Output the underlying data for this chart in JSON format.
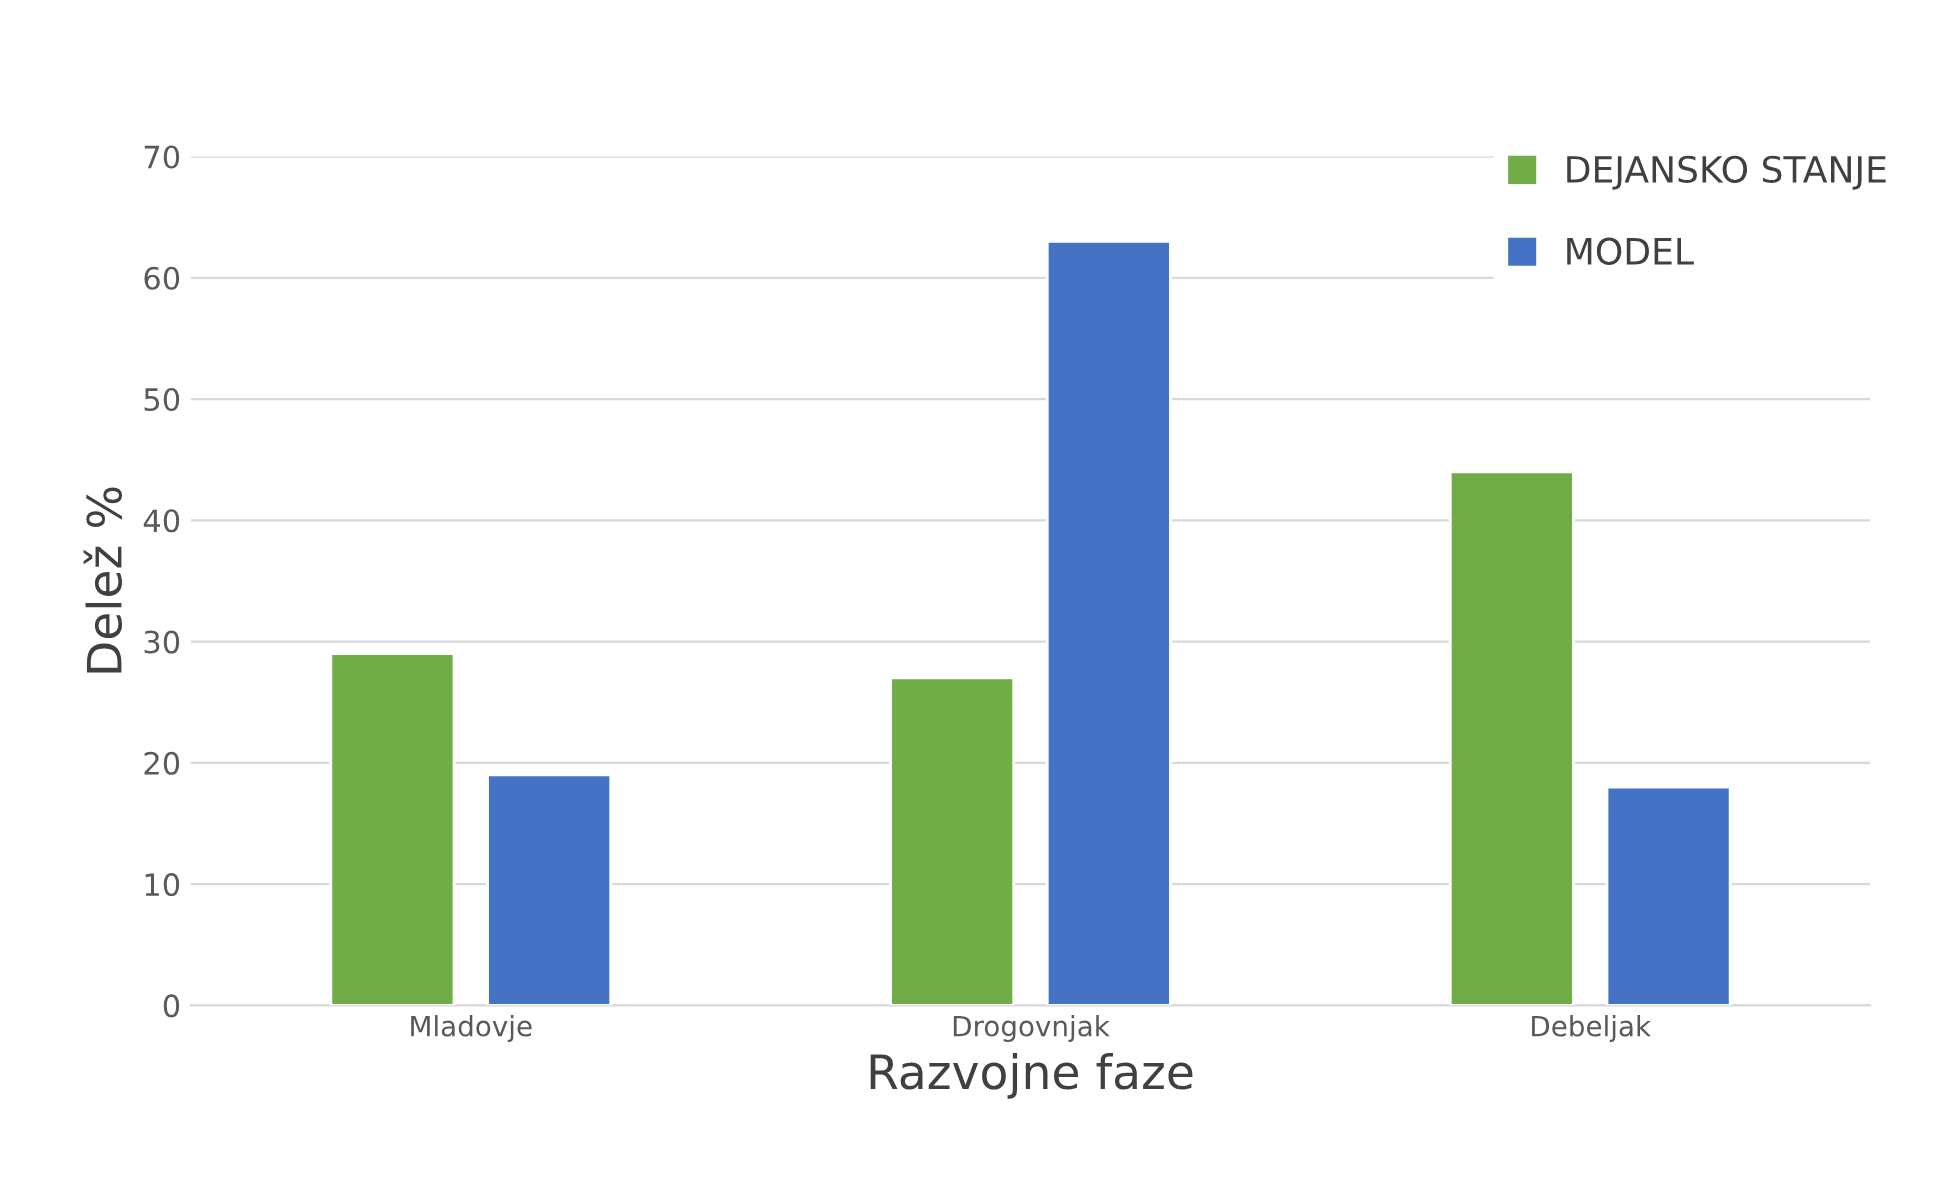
{
  "chart_data": {
    "type": "bar",
    "xlabel": "Razvojne faze",
    "ylabel": "Delež %",
    "categories": [
      "Mladovje",
      "Drogovnjak",
      "Debeljak"
    ],
    "series": [
      {
        "name": "DEJANSKO STANJE",
        "color": "#70ad47",
        "values": [
          29,
          27,
          44
        ]
      },
      {
        "name": "MODEL",
        "color": "#4472c4",
        "values": [
          19,
          63,
          18
        ]
      }
    ],
    "ylim": [
      0,
      70
    ],
    "yticks": [
      0,
      10,
      20,
      30,
      40,
      50,
      60,
      70
    ],
    "grid": "y",
    "legend": "top right"
  }
}
